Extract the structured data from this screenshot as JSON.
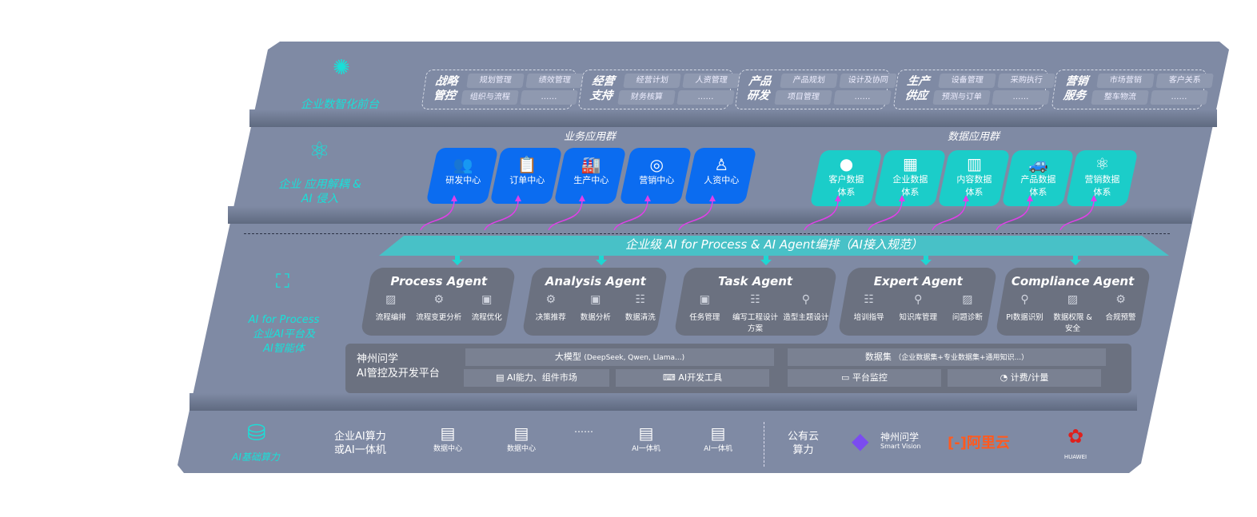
{
  "tiers": {
    "front": "企业数智化前台",
    "apps": "企业 应用解耦 & AI 侵入",
    "ai_line1": "AI for Process",
    "ai_line2": "企业AI平台及",
    "ai_line3": "AI智能体",
    "infra": "AI基础算力"
  },
  "groups": [
    {
      "title1": "战略",
      "title2": "管控",
      "items": [
        "规划管理",
        "绩效管理",
        "组织与流程",
        "……"
      ]
    },
    {
      "title1": "经营",
      "title2": "支持",
      "items": [
        "经营计划",
        "人资管理",
        "财务核算",
        "……"
      ]
    },
    {
      "title1": "产品",
      "title2": "研发",
      "items": [
        "产品规划",
        "设计及协同",
        "项目管理",
        "……"
      ]
    },
    {
      "title1": "生产",
      "title2": "供应",
      "items": [
        "设备管理",
        "采购执行",
        "预测与订单",
        "……"
      ]
    },
    {
      "title1": "营销",
      "title2": "服务",
      "items": [
        "市场营销",
        "客户关系",
        "整车物流",
        "……"
      ]
    }
  ],
  "business_apps": {
    "title": "业务应用群",
    "items": [
      {
        "label": "研发中心",
        "icon": "users-icon"
      },
      {
        "label": "订单中心",
        "icon": "clipboard-icon"
      },
      {
        "label": "生产中心",
        "icon": "factory-icon"
      },
      {
        "label": "营销中心",
        "icon": "target-icon"
      },
      {
        "label": "人资中心",
        "icon": "person-icon"
      }
    ]
  },
  "data_apps": {
    "title": "数据应用群",
    "items": [
      {
        "l1": "客户数据",
        "l2": "体系",
        "icon": "user-icon"
      },
      {
        "l1": "企业数据",
        "l2": "体系",
        "icon": "building-icon"
      },
      {
        "l1": "内容数据",
        "l2": "体系",
        "icon": "books-icon"
      },
      {
        "l1": "产品数据",
        "l2": "体系",
        "icon": "car-icon"
      },
      {
        "l1": "营销数据",
        "l2": "体系",
        "icon": "atom-icon"
      }
    ]
  },
  "banner": "企业级 AI for Process & AI Agent编排（AI接入规范）",
  "agents": [
    {
      "title": "Process Agent",
      "items": [
        "流程编排",
        "流程变更分析",
        "流程优化"
      ]
    },
    {
      "title": "Analysis Agent",
      "items": [
        "决策推荐",
        "数据分析",
        "数据清洗"
      ]
    },
    {
      "title": "Task Agent",
      "items": [
        "任务管理",
        "编写工程设计方案",
        "造型主题设计"
      ]
    },
    {
      "title": "Expert Agent",
      "items": [
        "培训指导",
        "知识库管理",
        "问题诊断"
      ]
    },
    {
      "title": "Compliance Agent",
      "items": [
        "PI数据识别",
        "数据权限 & 安全",
        "合规预警"
      ]
    }
  ],
  "platform": {
    "name1": "神州问学",
    "name2": "AI管控及开发平台",
    "models": "大模型",
    "models_note": "(DeepSeek, Qwen, Llama...)",
    "datasets": "数据集",
    "datasets_note": "（企业数据集+专业数据集+通用知识...）",
    "market": "AI能力、组件市场",
    "devtools": "AI开发工具",
    "monitor": "平台监控",
    "billing": "计费/计量"
  },
  "infra": {
    "private1": "企业AI算力",
    "private2": "或AI一体机",
    "servers": [
      "数据中心",
      "数据中心",
      "……",
      "AI一体机",
      "AI一体机"
    ],
    "public1": "公有云",
    "public2": "算力",
    "vendors": [
      {
        "name": "神州问学",
        "sub": "Smart Vision"
      },
      {
        "name": "阿里云"
      },
      {
        "name": "HUAWEI"
      }
    ]
  },
  "colors": {
    "slab": "#7f8aa4",
    "accent": "#19e0d8",
    "blue": "#0b6cf0",
    "teal": "#1bcdc9",
    "arrow": "#e040e8",
    "alibaba": "#ff5a1f",
    "huawei": "#e0201c"
  }
}
